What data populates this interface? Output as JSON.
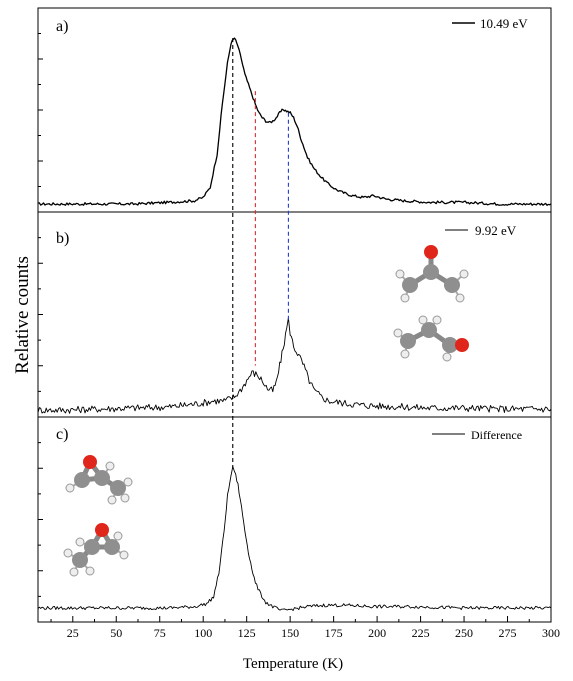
{
  "figure": {
    "ylabel": "Relative counts",
    "xlabel": "Temperature (K)"
  },
  "chart_data": [
    {
      "panel": "a)",
      "type": "line",
      "legend": "10.49 eV",
      "legend_position": "top-right",
      "xlim": [
        5,
        300
      ],
      "series": [
        {
          "name": "10.49 eV",
          "color": "#000000",
          "x": [
            5,
            20,
            40,
            60,
            80,
            95,
            100,
            104,
            108,
            111,
            114,
            116,
            118,
            120,
            122,
            124,
            126,
            128,
            130,
            132,
            134,
            136,
            138,
            140,
            142,
            144,
            146,
            148,
            150,
            152,
            154,
            156,
            158,
            160,
            164,
            168,
            172,
            176,
            180,
            186,
            192,
            198,
            205,
            215,
            230,
            250,
            270,
            290,
            300
          ],
          "y": [
            0.0,
            0.0,
            0.0,
            0.0,
            0.01,
            0.02,
            0.04,
            0.1,
            0.3,
            0.6,
            0.85,
            0.97,
            1.0,
            0.95,
            0.87,
            0.78,
            0.72,
            0.66,
            0.6,
            0.55,
            0.52,
            0.5,
            0.49,
            0.5,
            0.52,
            0.55,
            0.57,
            0.56,
            0.55,
            0.52,
            0.47,
            0.4,
            0.34,
            0.28,
            0.21,
            0.16,
            0.12,
            0.09,
            0.07,
            0.05,
            0.04,
            0.05,
            0.03,
            0.02,
            0.01,
            0.01,
            0.0,
            0.0,
            0.0
          ]
        }
      ],
      "markers": [
        {
          "x": 117,
          "color": "#000000"
        },
        {
          "x": 130,
          "color": "#d32f2f"
        },
        {
          "x": 149,
          "color": "#1f3fd6"
        }
      ]
    },
    {
      "panel": "b)",
      "type": "line",
      "legend": "9.92 eV",
      "legend_position": "top-right",
      "xlim": [
        5,
        300
      ],
      "series": [
        {
          "name": "9.92 eV",
          "color": "#000000",
          "x": [
            5,
            20,
            40,
            60,
            80,
            90,
            100,
            106,
            112,
            118,
            122,
            125,
            128,
            131,
            134,
            137,
            140,
            142,
            144,
            146,
            148,
            149,
            150,
            152,
            155,
            158,
            161,
            164,
            168,
            172,
            180,
            190,
            200,
            215,
            230,
            250,
            270,
            290,
            300
          ],
          "y": [
            0.01,
            0.01,
            0.02,
            0.03,
            0.04,
            0.06,
            0.08,
            0.1,
            0.1,
            0.14,
            0.22,
            0.3,
            0.38,
            0.36,
            0.3,
            0.22,
            0.2,
            0.28,
            0.45,
            0.62,
            0.82,
            0.9,
            0.78,
            0.64,
            0.55,
            0.44,
            0.3,
            0.2,
            0.14,
            0.1,
            0.08,
            0.06,
            0.05,
            0.04,
            0.03,
            0.03,
            0.02,
            0.02,
            0.02
          ]
        }
      ]
    },
    {
      "panel": "c)",
      "type": "line",
      "legend": "Difference",
      "legend_position": "top-right",
      "xlim": [
        5,
        300
      ],
      "series": [
        {
          "name": "Difference",
          "color": "#000000",
          "x": [
            5,
            20,
            40,
            60,
            80,
            95,
            102,
            106,
            109,
            112,
            114,
            116,
            117,
            118,
            120,
            122,
            124,
            126,
            128,
            130,
            133,
            136,
            140,
            145,
            150,
            155,
            160,
            170,
            180,
            200,
            220,
            250,
            280,
            300
          ],
          "y": [
            0.0,
            0.0,
            0.0,
            0.0,
            0.0,
            0.01,
            0.03,
            0.08,
            0.25,
            0.55,
            0.8,
            0.95,
            1.0,
            0.98,
            0.88,
            0.72,
            0.55,
            0.4,
            0.28,
            0.18,
            0.1,
            0.04,
            0.01,
            -0.02,
            -0.01,
            0.0,
            0.01,
            0.02,
            0.02,
            0.01,
            0.01,
            0.0,
            0.0,
            0.0
          ]
        }
      ]
    }
  ],
  "x_ticks": [
    25,
    50,
    75,
    100,
    125,
    150,
    175,
    200,
    225,
    250,
    275,
    300
  ]
}
